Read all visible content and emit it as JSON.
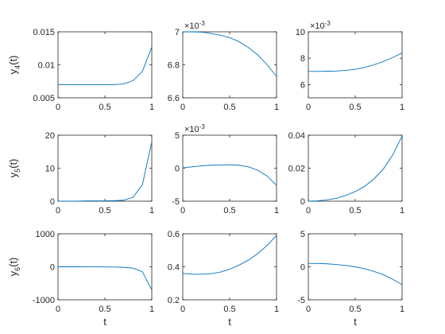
{
  "chart_data": [
    {
      "type": "line",
      "x": [
        0,
        0.1,
        0.2,
        0.3,
        0.4,
        0.5,
        0.6,
        0.7,
        0.8,
        0.9,
        1.0
      ],
      "series": [
        {
          "values": [
            0.007,
            0.007,
            0.007,
            0.007,
            0.007,
            0.007,
            0.007,
            0.0071,
            0.0076,
            0.009,
            0.0127
          ]
        }
      ],
      "xlim": [
        0,
        1
      ],
      "ylim": [
        0.005,
        0.015
      ],
      "xticks": [
        "0",
        "0.5",
        "1"
      ],
      "yticks": [
        "0.005",
        "0.01",
        "0.015"
      ],
      "ylabel": {
        "base": "y",
        "sub": "4",
        "tail": "(t)"
      },
      "xlabel": "",
      "exponent": ""
    },
    {
      "type": "line",
      "x": [
        0,
        0.1,
        0.2,
        0.3,
        0.4,
        0.5,
        0.6,
        0.7,
        0.8,
        0.9,
        1.0
      ],
      "series": [
        {
          "values": [
            7.0,
            7.0,
            6.998,
            6.99,
            6.98,
            6.965,
            6.94,
            6.905,
            6.86,
            6.8,
            6.73
          ]
        }
      ],
      "xlim": [
        0,
        1
      ],
      "ylim": [
        6.6,
        7.0
      ],
      "xticks": [
        "0",
        "0.5",
        "1"
      ],
      "yticks": [
        "6.6",
        "6.8",
        "7"
      ],
      "ylabel": null,
      "xlabel": "",
      "exponent": "-3"
    },
    {
      "type": "line",
      "x": [
        0,
        0.1,
        0.2,
        0.3,
        0.4,
        0.5,
        0.6,
        0.7,
        0.8,
        0.9,
        1.0
      ],
      "series": [
        {
          "values": [
            7.0,
            7.0,
            7.01,
            7.03,
            7.08,
            7.16,
            7.3,
            7.5,
            7.75,
            8.05,
            8.4
          ]
        }
      ],
      "xlim": [
        0,
        1
      ],
      "ylim": [
        5,
        10
      ],
      "xticks": [
        "0",
        "0.5",
        "1"
      ],
      "yticks": [
        "6",
        "8",
        "10"
      ],
      "ylabel": null,
      "xlabel": "",
      "exponent": "-3"
    },
    {
      "type": "line",
      "x": [
        0,
        0.1,
        0.2,
        0.3,
        0.4,
        0.5,
        0.6,
        0.7,
        0.8,
        0.9,
        1.0
      ],
      "series": [
        {
          "values": [
            0,
            0,
            0,
            0.1,
            0.1,
            0.1,
            0.15,
            0.3,
            1.2,
            5.0,
            18.0
          ]
        }
      ],
      "xlim": [
        0,
        1
      ],
      "ylim": [
        0,
        20
      ],
      "xticks": [
        "0",
        "0.5",
        "1"
      ],
      "yticks": [
        "0",
        "10",
        "20"
      ],
      "ylabel": {
        "base": "y",
        "sub": "5",
        "tail": "(t)"
      },
      "xlabel": "",
      "exponent": ""
    },
    {
      "type": "line",
      "x": [
        0,
        0.1,
        0.2,
        0.3,
        0.4,
        0.5,
        0.6,
        0.7,
        0.8,
        0.9,
        1.0
      ],
      "series": [
        {
          "values": [
            0.05,
            0.2,
            0.35,
            0.45,
            0.5,
            0.52,
            0.45,
            0.2,
            -0.3,
            -1.2,
            -2.6
          ]
        }
      ],
      "xlim": [
        0,
        1
      ],
      "ylim": [
        -5,
        5
      ],
      "xticks": [
        "0",
        "0.5",
        "1"
      ],
      "yticks": [
        "-5",
        "0",
        "5"
      ],
      "ylabel": null,
      "xlabel": "",
      "exponent": "-3"
    },
    {
      "type": "line",
      "x": [
        0,
        0.1,
        0.2,
        0.3,
        0.4,
        0.5,
        0.6,
        0.7,
        0.8,
        0.9,
        1.0
      ],
      "series": [
        {
          "values": [
            0,
            0.0002,
            0.0008,
            0.0018,
            0.0035,
            0.0058,
            0.009,
            0.0135,
            0.0195,
            0.028,
            0.0395
          ]
        }
      ],
      "xlim": [
        0,
        1
      ],
      "ylim": [
        0,
        0.04
      ],
      "xticks": [
        "0",
        "0.5",
        "1"
      ],
      "yticks": [
        "0",
        "0.02",
        "0.04"
      ],
      "ylabel": null,
      "xlabel": "",
      "exponent": ""
    },
    {
      "type": "line",
      "x": [
        0,
        0.1,
        0.2,
        0.3,
        0.4,
        0.5,
        0.6,
        0.7,
        0.8,
        0.9,
        1.0
      ],
      "series": [
        {
          "values": [
            0,
            0,
            0,
            -1,
            -2,
            -4,
            -7,
            -15,
            -40,
            -150,
            -700
          ]
        }
      ],
      "xlim": [
        0,
        1
      ],
      "ylim": [
        -1000,
        1000
      ],
      "xticks": [
        "0",
        "0.5",
        "1"
      ],
      "yticks": [
        "-1000",
        "0",
        "1000"
      ],
      "ylabel": {
        "base": "y",
        "sub": "6",
        "tail": "(t)"
      },
      "xlabel": "t",
      "exponent": ""
    },
    {
      "type": "line",
      "x": [
        0,
        0.1,
        0.2,
        0.3,
        0.4,
        0.5,
        0.6,
        0.7,
        0.8,
        0.9,
        1.0
      ],
      "series": [
        {
          "values": [
            0.36,
            0.355,
            0.355,
            0.358,
            0.368,
            0.385,
            0.41,
            0.44,
            0.48,
            0.53,
            0.59
          ]
        }
      ],
      "xlim": [
        0,
        1
      ],
      "ylim": [
        0.2,
        0.6
      ],
      "xticks": [
        "0",
        "0.5",
        "1"
      ],
      "yticks": [
        "0.2",
        "0.4",
        "0.6"
      ],
      "ylabel": null,
      "xlabel": "t",
      "exponent": ""
    },
    {
      "type": "line",
      "x": [
        0,
        0.1,
        0.2,
        0.3,
        0.4,
        0.5,
        0.6,
        0.7,
        0.8,
        0.9,
        1.0
      ],
      "series": [
        {
          "values": [
            0.5,
            0.5,
            0.45,
            0.35,
            0.2,
            0,
            -0.3,
            -0.7,
            -1.2,
            -1.9,
            -2.7
          ]
        }
      ],
      "xlim": [
        0,
        1
      ],
      "ylim": [
        -5,
        5
      ],
      "xticks": [
        "0",
        "0.5",
        "1"
      ],
      "yticks": [
        "-5",
        "0",
        "5"
      ],
      "ylabel": null,
      "xlabel": "t",
      "exponent": ""
    }
  ]
}
